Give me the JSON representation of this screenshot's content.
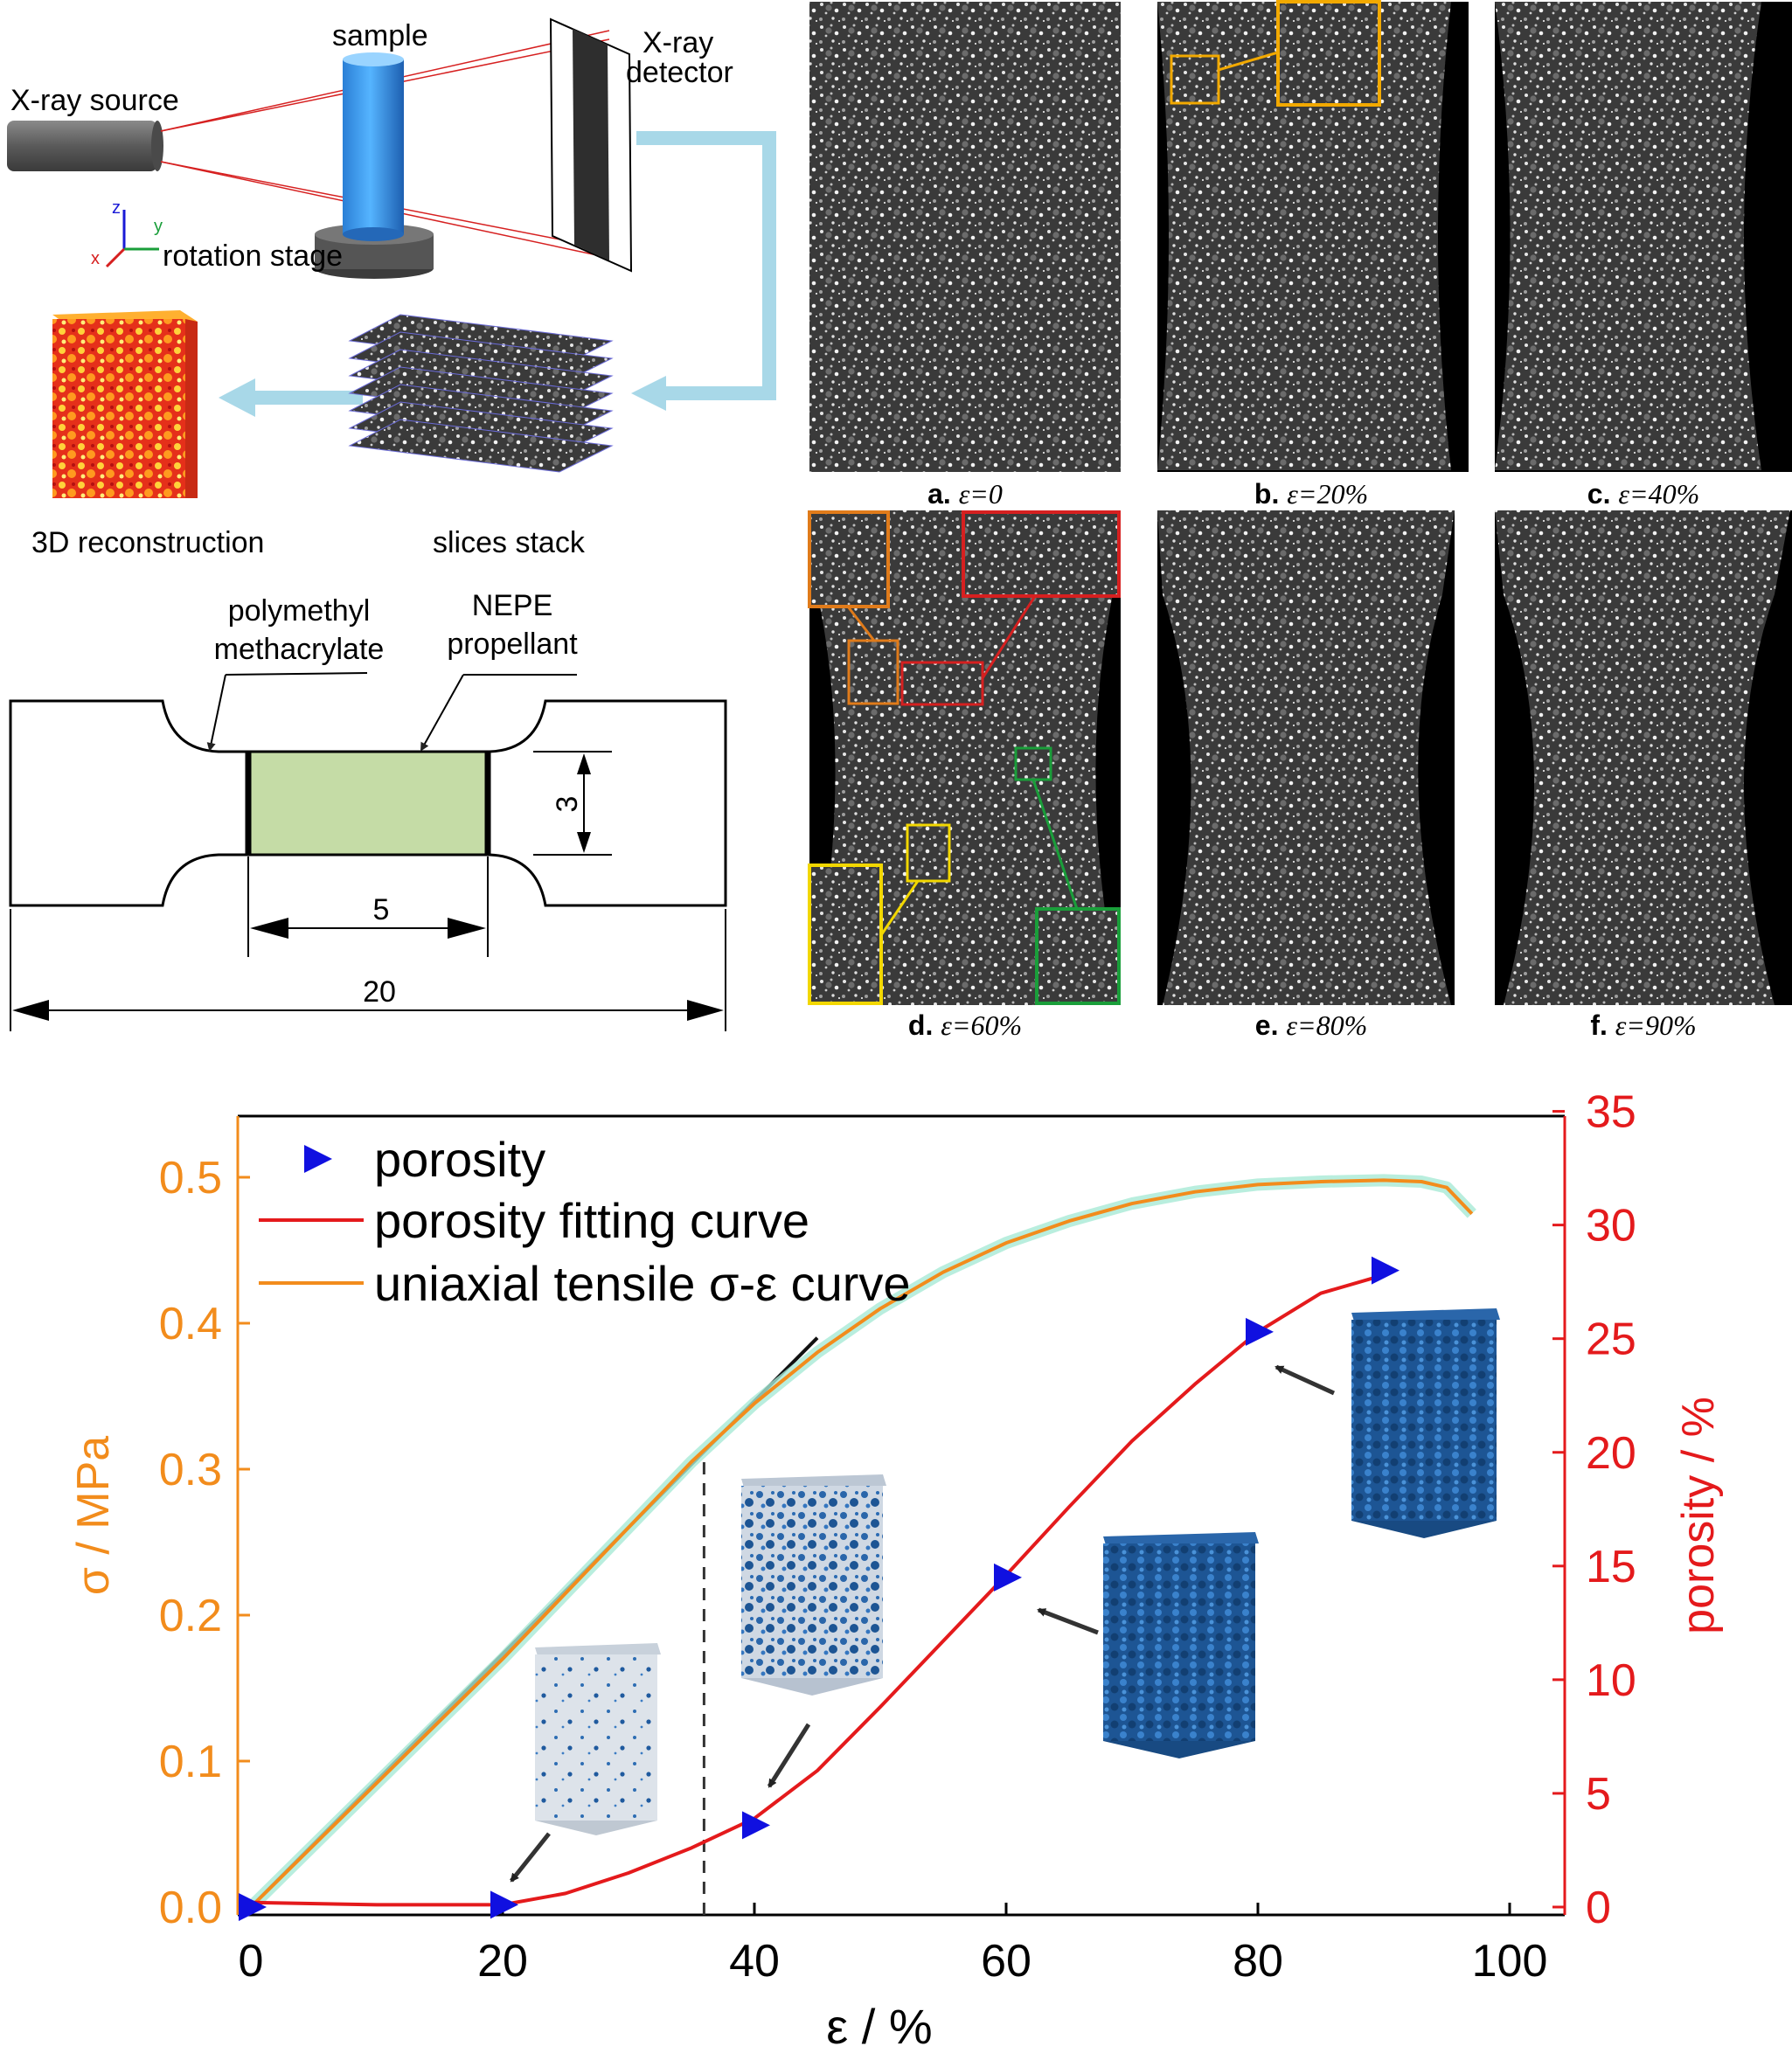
{
  "setup": {
    "xray_source": "X-ray source",
    "sample": "sample",
    "detector_line1": "X-ray",
    "detector_line2": "detector",
    "rotation_stage": "rotation stage",
    "axis_z": "z",
    "axis_y": "y",
    "axis_x": "x",
    "reconstruction": "3D reconstruction",
    "slices": "slices stack"
  },
  "specimen": {
    "pmma_line1": "polymethyl",
    "pmma_line2": "methacrylate",
    "nepe_line1": "NEPE",
    "nepe_line2": "propellant",
    "dim_height": "3",
    "dim_gauge": "5",
    "dim_total": "20"
  },
  "ct_panels": [
    {
      "letter": "a.",
      "strain": "ε=0"
    },
    {
      "letter": "b.",
      "strain": "ε=20%"
    },
    {
      "letter": "c.",
      "strain": "ε=40%"
    },
    {
      "letter": "d.",
      "strain": "ε=60%"
    },
    {
      "letter": "e.",
      "strain": "ε=80%"
    },
    {
      "letter": "f.",
      "strain": "ε=90%"
    }
  ],
  "chart_data": {
    "type": "line",
    "xlabel": "ε / %",
    "ylabel_left": "σ / MPa",
    "ylabel_right": "porosity / %",
    "xlim": [
      0,
      105
    ],
    "ylim_left": [
      0,
      0.55
    ],
    "ylim_right": [
      0,
      35
    ],
    "x_ticks": [
      "0",
      "20",
      "40",
      "60",
      "80",
      "100"
    ],
    "y_left_ticks": [
      "0.0",
      "0.1",
      "0.2",
      "0.3",
      "0.4",
      "0.5"
    ],
    "y_right_ticks": [
      "0",
      "5",
      "10",
      "15",
      "20",
      "25",
      "30",
      "35"
    ],
    "legend": [
      {
        "label": "porosity",
        "color": "#1010e0",
        "marker": "triangle-right"
      },
      {
        "label": "porosity fitting curve",
        "color": "#e41a1c",
        "marker": "line"
      },
      {
        "label": "uniaxial tensile σ-ε curve",
        "color": "#f28c1c",
        "marker": "line"
      }
    ],
    "porosity_points": {
      "x": [
        0,
        20,
        40,
        60,
        80,
        90
      ],
      "y": [
        0,
        0.1,
        3.6,
        14.5,
        25.3,
        28.0
      ]
    },
    "porosity_fit": {
      "x": [
        0,
        10,
        20,
        25,
        30,
        35,
        40,
        45,
        50,
        55,
        60,
        65,
        70,
        75,
        80,
        85,
        90
      ],
      "y": [
        0.2,
        0.1,
        0.1,
        0.6,
        1.5,
        2.6,
        3.9,
        6.0,
        8.8,
        11.7,
        14.6,
        17.6,
        20.5,
        23.0,
        25.3,
        27.0,
        27.8
      ]
    },
    "stress_strain": {
      "x": [
        0,
        10,
        20,
        30,
        35,
        40,
        45,
        50,
        55,
        60,
        65,
        70,
        75,
        80,
        85,
        90,
        93,
        95,
        97
      ],
      "y": [
        0,
        0.085,
        0.17,
        0.26,
        0.305,
        0.345,
        0.38,
        0.41,
        0.435,
        0.455,
        0.47,
        0.482,
        0.49,
        0.495,
        0.497,
        0.498,
        0.497,
        0.493,
        0.475
      ]
    },
    "linear_fit": {
      "x": [
        0,
        45
      ],
      "y": [
        0,
        0.39
      ]
    },
    "yield_strain_marker": 36
  }
}
